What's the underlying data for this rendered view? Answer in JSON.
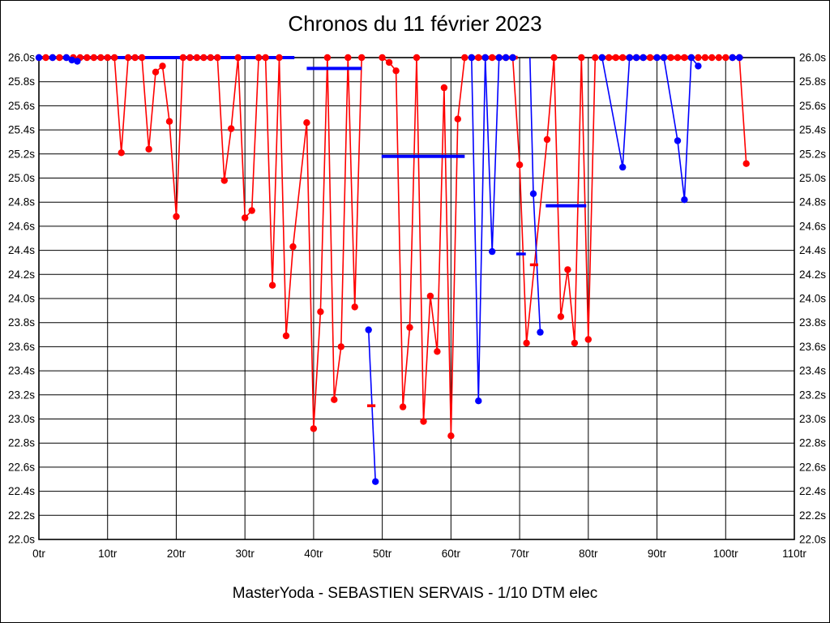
{
  "title": "Chronos du 11 février 2023",
  "footer": "MasterYoda - SEBASTIEN SERVAIS - 1/10 DTM elec",
  "colors": {
    "red_series": "#ff0000",
    "blue_series": "#0000ff",
    "grid": "#000000",
    "background": "#ffffff"
  },
  "chart_data": {
    "type": "line",
    "title": "Chronos du 11 février 2023",
    "subtitle": "MasterYoda - SEBASTIEN SERVAIS - 1/10 DTM elec",
    "x_unit": "tr",
    "y_unit": "s",
    "xlim": [
      0,
      110
    ],
    "ylim": [
      22.0,
      26.0
    ],
    "y_step": 0.2,
    "x_tick_step": 10,
    "clip_max": 26.0,
    "grid": true,
    "x_ticks": [
      "0tr",
      "10tr",
      "20tr",
      "30tr",
      "40tr",
      "50tr",
      "60tr",
      "70tr",
      "80tr",
      "90tr",
      "100tr",
      "110tr"
    ],
    "y_ticks": [
      "26.0s",
      "25.8s",
      "25.6s",
      "25.4s",
      "25.2s",
      "25.0s",
      "24.8s",
      "24.6s",
      "24.4s",
      "24.2s",
      "24.0s",
      "23.8s",
      "23.6s",
      "23.4s",
      "23.2s",
      "23.0s",
      "22.8s",
      "22.6s",
      "22.4s",
      "22.2s",
      "22.0s"
    ],
    "series": [
      {
        "name": "lap-times-red",
        "color": "#ff0000",
        "segments": [
          {
            "w": 1.6,
            "dots": "same",
            "line": [
              [
                0,
                26
              ],
              [
                1,
                26
              ],
              [
                2,
                26
              ],
              [
                3,
                26
              ],
              [
                4,
                26
              ],
              [
                5,
                26
              ],
              [
                6,
                26
              ],
              [
                7,
                26
              ],
              [
                8,
                26
              ],
              [
                9,
                26
              ],
              [
                10,
                26
              ],
              [
                11,
                26
              ],
              [
                12,
                25.21
              ],
              [
                13,
                26
              ],
              [
                14,
                26
              ],
              [
                15,
                26
              ],
              [
                16,
                25.24
              ],
              [
                17,
                25.88
              ],
              [
                18,
                25.93
              ],
              [
                19,
                25.47
              ],
              [
                20,
                24.68
              ],
              [
                21,
                26
              ],
              [
                22,
                26
              ],
              [
                23,
                26
              ],
              [
                24,
                26
              ],
              [
                25,
                26
              ],
              [
                26,
                26
              ],
              [
                27,
                24.98
              ],
              [
                28,
                25.41
              ],
              [
                29,
                26
              ],
              [
                30,
                24.67
              ],
              [
                31,
                24.73
              ],
              [
                32,
                26
              ],
              [
                33,
                26
              ],
              [
                34,
                24.11
              ],
              [
                35,
                26
              ],
              [
                36,
                23.69
              ],
              [
                37,
                24.43
              ],
              [
                39,
                25.46
              ],
              [
                40,
                22.92
              ],
              [
                41,
                23.89
              ],
              [
                42,
                26
              ],
              [
                43,
                23.16
              ],
              [
                44,
                23.6
              ],
              [
                45,
                26
              ],
              [
                46,
                23.93
              ],
              [
                47,
                26
              ]
            ]
          },
          {
            "w": 1.6,
            "dots": "same",
            "line": [
              [
                50,
                26
              ],
              [
                51,
                25.96
              ],
              [
                52,
                25.89
              ],
              [
                53,
                23.1
              ],
              [
                54,
                23.76
              ],
              [
                55,
                26
              ],
              [
                56,
                22.98
              ],
              [
                57,
                24.02
              ],
              [
                58,
                23.56
              ],
              [
                59,
                25.75
              ],
              [
                60,
                22.86
              ],
              [
                61,
                25.49
              ],
              [
                62,
                26
              ],
              [
                63,
                26
              ],
              [
                64,
                26
              ],
              [
                65,
                26
              ],
              [
                66,
                26
              ],
              [
                67,
                26
              ],
              [
                68,
                26
              ],
              [
                69,
                26
              ],
              [
                70,
                25.11
              ],
              [
                71,
                23.63
              ],
              [
                74,
                25.32
              ],
              [
                75,
                26
              ],
              [
                76,
                23.85
              ],
              [
                77,
                24.24
              ],
              [
                78,
                23.63
              ],
              [
                79,
                26
              ],
              [
                80,
                23.66
              ],
              [
                81,
                26
              ],
              [
                82,
                26
              ],
              [
                83,
                26
              ],
              [
                84,
                26
              ],
              [
                85,
                26
              ],
              [
                86,
                26
              ],
              [
                87,
                26
              ],
              [
                88,
                26
              ],
              [
                89,
                26
              ],
              [
                90,
                26
              ],
              [
                91,
                26
              ],
              [
                92,
                26
              ],
              [
                93,
                26
              ],
              [
                94,
                26
              ],
              [
                95,
                26
              ]
            ]
          },
          {
            "w": 1.6,
            "line": [],
            "dots": [
              [
                96,
                26
              ],
              [
                97,
                26
              ],
              [
                98,
                26
              ],
              [
                99,
                26
              ],
              [
                100,
                26
              ],
              [
                101,
                26
              ]
            ]
          },
          {
            "w": 1.6,
            "dots": "same",
            "line": [
              [
                102,
                26
              ],
              [
                103,
                25.12
              ]
            ]
          }
        ],
        "thick_runs_at_max": [
          [
            63,
            69.7
          ],
          [
            82,
            95
          ]
        ]
      },
      {
        "name": "reference-blue",
        "color": "#0000ff",
        "segments": [
          {
            "w": 4,
            "line": [
              [
                0,
                26
              ],
              [
                4,
                26
              ],
              [
                4.8,
                25.98
              ],
              [
                5.6,
                25.97
              ],
              [
                6.2,
                26
              ],
              [
                37.2,
                26
              ]
            ],
            "dots": [
              [
                0,
                26
              ],
              [
                2,
                26
              ],
              [
                4,
                26
              ],
              [
                4.8,
                25.98
              ],
              [
                5.6,
                25.97
              ]
            ]
          },
          {
            "w": 1.6,
            "dots": "same",
            "line": [
              [
                48,
                23.74
              ],
              [
                49,
                22.48
              ]
            ]
          },
          {
            "w": 1.6,
            "dots": "same",
            "line": [
              [
                63,
                26
              ],
              [
                64,
                23.15
              ],
              [
                65,
                26
              ],
              [
                66,
                24.39
              ],
              [
                67,
                26
              ],
              [
                68,
                26
              ],
              [
                69,
                26
              ]
            ]
          },
          {
            "w": 1.6,
            "line": [
              [
                71.5,
                26
              ],
              [
                72,
                24.87
              ],
              [
                73,
                23.72
              ]
            ],
            "dots": [
              [
                72,
                24.87
              ],
              [
                73,
                23.72
              ]
            ]
          },
          {
            "w": 1.6,
            "dots": "same",
            "line": [
              [
                82,
                26
              ],
              [
                85,
                25.09
              ],
              [
                86,
                26
              ],
              [
                87,
                26
              ],
              [
                88,
                26
              ],
              [
                90,
                26
              ],
              [
                91,
                26
              ],
              [
                93,
                25.31
              ],
              [
                94,
                24.82
              ],
              [
                95,
                26
              ],
              [
                96,
                25.93
              ]
            ]
          },
          {
            "w": 4,
            "line": [
              [
                100.7,
                26
              ],
              [
                102.5,
                26
              ]
            ],
            "dots": [
              [
                101,
                26
              ],
              [
                102,
                26
              ]
            ]
          }
        ]
      }
    ],
    "average_lines": [
      {
        "color": "#0000ff",
        "lap1": 39.0,
        "lap2": 47.0,
        "t": 25.91
      },
      {
        "color": "#0000ff",
        "lap1": 49.9,
        "lap2": 62.0,
        "t": 25.18
      },
      {
        "color": "#0000ff",
        "lap1": 73.8,
        "lap2": 79.7,
        "t": 24.77
      }
    ],
    "dash_markers": [
      {
        "color": "#ff0000",
        "lap1": 47.8,
        "lap2": 49.0,
        "t": 23.11
      },
      {
        "color": "#0000ff",
        "lap1": 69.5,
        "lap2": 70.9,
        "t": 24.37
      },
      {
        "color": "#ff0000",
        "lap1": 71.5,
        "lap2": 72.7,
        "t": 24.28
      }
    ]
  }
}
